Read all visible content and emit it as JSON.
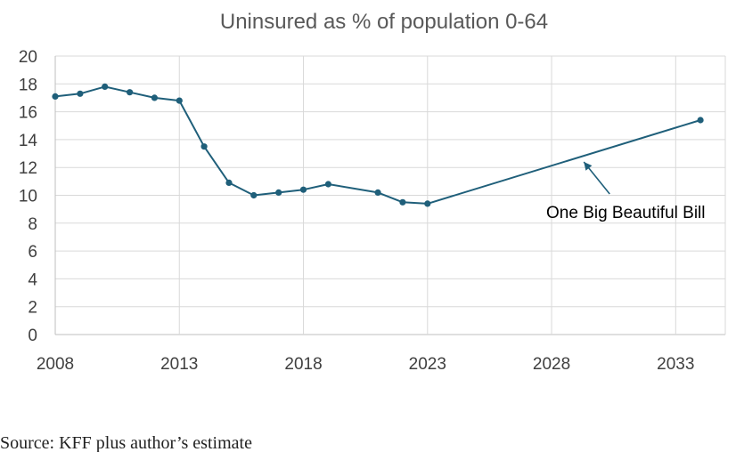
{
  "chart_data": {
    "type": "line",
    "title": "Uninsured as % of population 0-64",
    "xlabel": "",
    "ylabel": "",
    "xlim": [
      2008,
      2035
    ],
    "ylim": [
      0,
      20
    ],
    "x_ticks": [
      "2008",
      "2013",
      "2018",
      "2023",
      "2028",
      "2033"
    ],
    "y_ticks": [
      "0",
      "2",
      "4",
      "6",
      "8",
      "10",
      "12",
      "14",
      "16",
      "18",
      "20"
    ],
    "grid": true,
    "series": [
      {
        "x": [
          2008,
          2009,
          2010,
          2011,
          2012,
          2013,
          2014,
          2015,
          2016,
          2017,
          2018,
          2019,
          2021,
          2022,
          2023,
          2034
        ],
        "values": [
          17.1,
          17.3,
          17.8,
          17.4,
          17.0,
          16.8,
          13.5,
          10.9,
          10.0,
          10.2,
          10.4,
          10.8,
          10.2,
          9.5,
          9.4,
          15.4
        ]
      }
    ],
    "annotation": {
      "text": "One Big Beautiful Bill",
      "arrow_target_x": 2029.3,
      "arrow_target_y": 12.4
    },
    "colors": {
      "line": "#1f5f7a",
      "marker": "#1f5f7a"
    }
  },
  "source": "Source: KFF plus author’s estimate"
}
